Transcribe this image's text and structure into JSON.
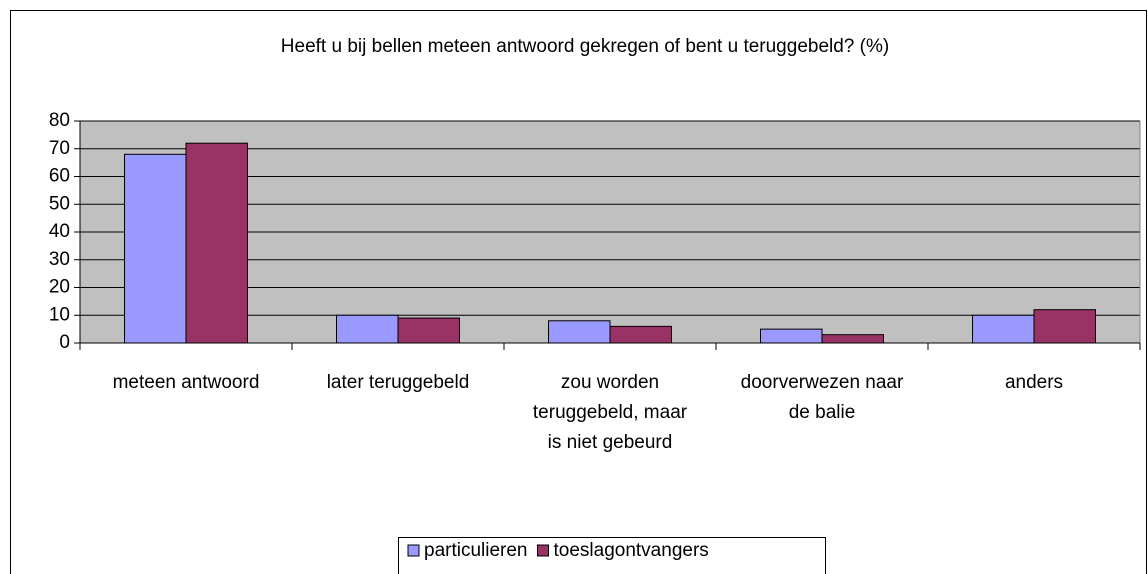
{
  "chart_data": {
    "type": "bar",
    "title": "Heeft u bij bellen meteen antwoord gekregen of bent u teruggebeld? (%)",
    "categories": [
      "meteen antwoord",
      "later teruggebeld",
      "zou worden teruggebeld, maar is niet gebeurd",
      "doorverwezen naar de balie",
      "anders"
    ],
    "series": [
      {
        "name": "particulieren",
        "color": "#9999ff",
        "values": [
          68,
          10,
          8,
          5,
          10
        ]
      },
      {
        "name": "toeslagontvangers",
        "color": "#993366",
        "values": [
          72,
          9,
          6,
          3,
          12
        ]
      }
    ],
    "ylim": [
      0,
      80
    ],
    "yticks": [
      0,
      10,
      20,
      30,
      40,
      50,
      60,
      70,
      80
    ],
    "grid": true,
    "legend": "bottom"
  }
}
